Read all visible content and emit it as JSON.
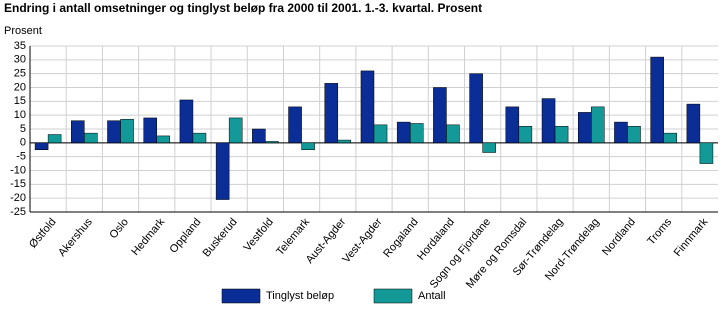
{
  "chart_data": {
    "type": "bar",
    "title": "Endring i antall omsetninger og tinglyst beløp fra 2000 til 2001. 1.-3. kvartal. Prosent",
    "y_label": "Prosent",
    "categories": [
      "Østfold",
      "Akershus",
      "Oslo",
      "Hedmark",
      "Oppland",
      "Buskerud",
      "Vestfold",
      "Telemark",
      "Aust-Agder",
      "Vest-Agder",
      "Rogaland",
      "Hordaland",
      "Sogn og Fjordane",
      "Møre og Romsdal",
      "Sør-Trøndelag",
      "Nord-Trøndelag",
      "Nordland",
      "Troms",
      "Finnmark"
    ],
    "series": [
      {
        "name": "Tinglyst beløp",
        "color": "#0b2d96",
        "values": [
          -2.5,
          8,
          8,
          9,
          15.5,
          -20.5,
          5,
          13,
          21.5,
          26,
          7.5,
          20,
          25,
          13,
          16,
          11,
          7.5,
          31,
          14
        ]
      },
      {
        "name": "Antall",
        "color": "#139a98",
        "values": [
          3,
          3.5,
          8.5,
          2.5,
          3.5,
          9,
          0.5,
          -2.5,
          1,
          6.5,
          7,
          6.5,
          -3.5,
          6,
          6,
          13,
          6,
          3.5,
          -7.5
        ]
      }
    ],
    "ylim": [
      -25,
      35
    ],
    "yticks": [
      -25,
      -20,
      -15,
      -10,
      -5,
      0,
      5,
      10,
      15,
      20,
      25,
      30,
      35
    ],
    "grid": true,
    "legend": "bottom"
  }
}
